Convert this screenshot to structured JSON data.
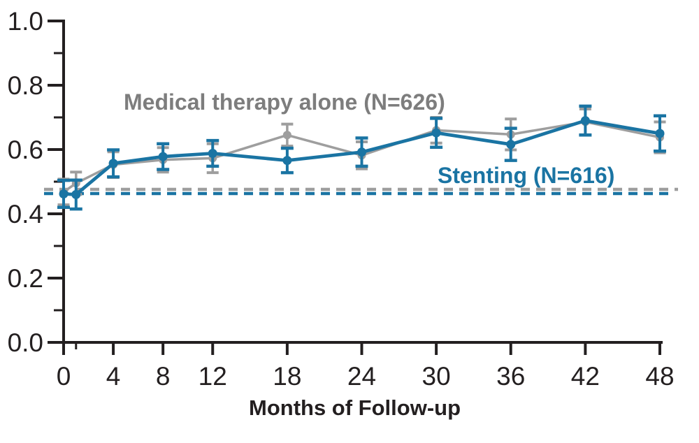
{
  "figure": {
    "background": "#ffffff",
    "axis_color": "#231f20",
    "tick_label_color": "#231f20"
  },
  "chart_data": {
    "type": "line",
    "title": "",
    "xlabel": "Months of Follow-up",
    "ylabel": "",
    "xlim": [
      0,
      48
    ],
    "ylim": [
      0.0,
      1.0
    ],
    "x_ticks": [
      0,
      4,
      8,
      12,
      18,
      24,
      30,
      36,
      42,
      48
    ],
    "x_minor_ticks": [
      1
    ],
    "y_ticks": [
      0.0,
      0.2,
      0.4,
      0.6,
      0.8,
      1.0
    ],
    "y_minor_ticks": [
      0.1,
      0.3,
      0.5,
      0.7,
      0.9
    ],
    "grid": false,
    "legend_position": "inline-annotations",
    "x": [
      0,
      1,
      4,
      8,
      12,
      18,
      24,
      30,
      36,
      42,
      48
    ],
    "series": [
      {
        "name": "Medical therapy alone (N=626)",
        "color": "#9e9e9e",
        "label_color": "#7d7d7d",
        "marker": "circle",
        "line_style": "solid",
        "values": [
          0.468,
          0.495,
          0.553,
          0.568,
          0.573,
          0.645,
          0.582,
          0.66,
          0.647,
          0.686,
          0.638
        ],
        "errors": [
          0.04,
          0.035,
          0.04,
          0.038,
          0.045,
          0.034,
          0.042,
          0.04,
          0.048,
          0.04,
          0.048
        ],
        "baseline": 0.476,
        "baseline_style": "dashed"
      },
      {
        "name": "Stenting (N=616)",
        "color": "#1a74a3",
        "label_color": "#1a74a3",
        "marker": "circle",
        "line_style": "solid",
        "values": [
          0.462,
          0.46,
          0.557,
          0.578,
          0.588,
          0.566,
          0.592,
          0.652,
          0.616,
          0.69,
          0.65
        ],
        "errors": [
          0.042,
          0.045,
          0.042,
          0.04,
          0.04,
          0.038,
          0.044,
          0.045,
          0.05,
          0.045,
          0.055
        ],
        "baseline": 0.463,
        "baseline_style": "dashed"
      }
    ]
  }
}
